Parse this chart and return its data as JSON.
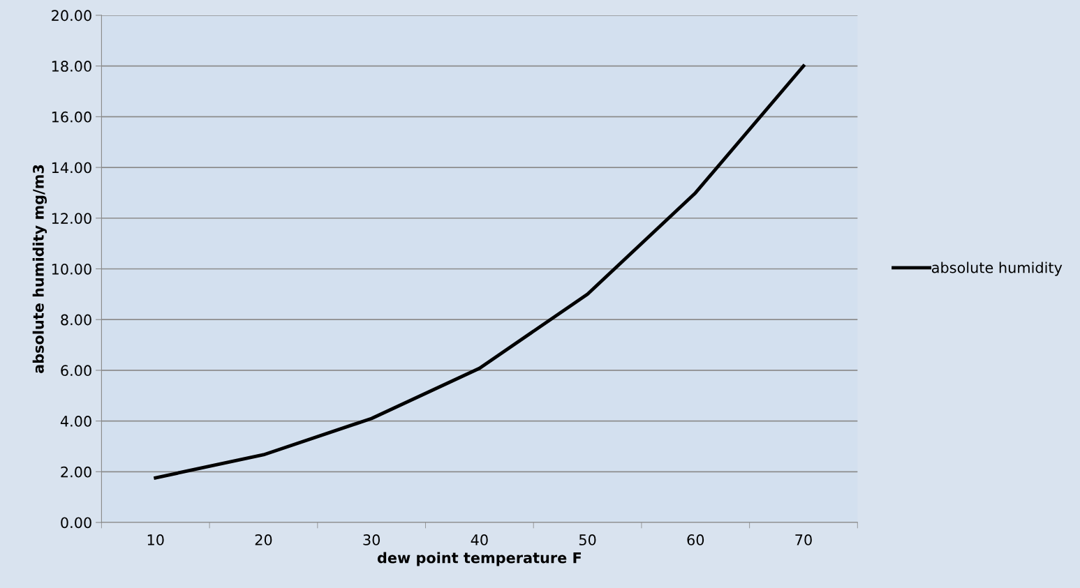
{
  "chart_data": {
    "type": "line",
    "xlabel": "dew point temperature F",
    "ylabel": "absolute humidity mg/m3",
    "categories": [
      "10",
      "20",
      "30",
      "40",
      "50",
      "60",
      "70"
    ],
    "series": [
      {
        "name": "absolute humidity",
        "color": "#000000",
        "values": [
          1.76,
          2.67,
          4.1,
          6.08,
          9.0,
          13.0,
          18.0
        ]
      }
    ],
    "ylim": [
      0,
      20
    ],
    "yticks": [
      {
        "value": 0,
        "label": "0.00"
      },
      {
        "value": 2,
        "label": "2.00"
      },
      {
        "value": 4,
        "label": "4.00"
      },
      {
        "value": 6,
        "label": "6.00"
      },
      {
        "value": 8,
        "label": "8.00"
      },
      {
        "value": 10,
        "label": "10.00"
      },
      {
        "value": 12,
        "label": "12.00"
      },
      {
        "value": 14,
        "label": "14.00"
      },
      {
        "value": 16,
        "label": "16.00"
      },
      {
        "value": 18,
        "label": "18.00"
      },
      {
        "value": 20,
        "label": "20.00"
      }
    ],
    "grid": "y",
    "legend": "right",
    "marker": "none",
    "line_style": "solid"
  }
}
